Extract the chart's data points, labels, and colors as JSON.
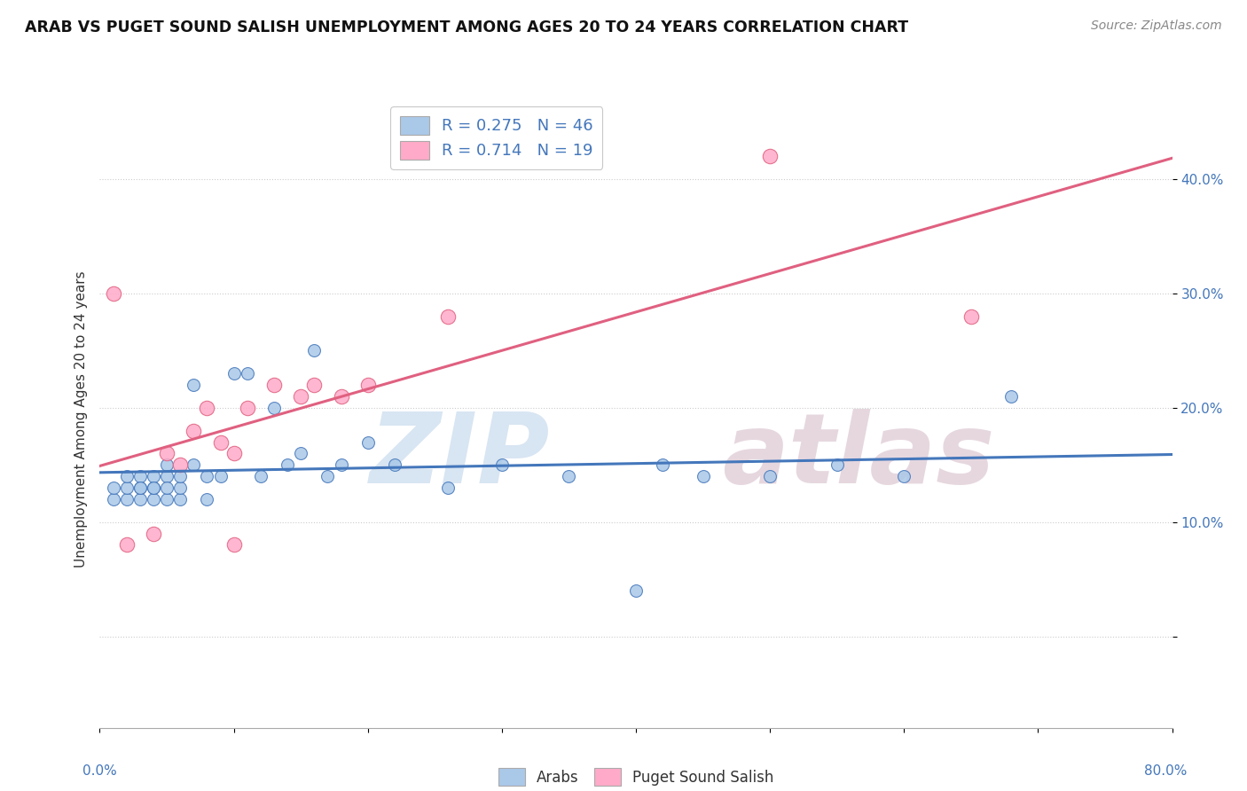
{
  "title": "ARAB VS PUGET SOUND SALISH UNEMPLOYMENT AMONG AGES 20 TO 24 YEARS CORRELATION CHART",
  "source": "Source: ZipAtlas.com",
  "ylabel": "Unemployment Among Ages 20 to 24 years",
  "watermark_zip": "ZIP",
  "watermark_atlas": "atlas",
  "arab_color": "#aac8e8",
  "salish_color": "#ffaac8",
  "arab_line_color": "#4477bb",
  "salish_line_color": "#e06080",
  "background_color": "#ffffff",
  "grid_color": "#cccccc",
  "xlim": [
    0.0,
    0.8
  ],
  "ylim": [
    -0.08,
    0.46
  ],
  "ytick_vals": [
    0.0,
    0.1,
    0.2,
    0.3,
    0.4
  ],
  "legend1_arab_label": "R = 0.275   N = 46",
  "legend1_salish_label": "R = 0.714   N = 19",
  "legend2_arab_label": "Arabs",
  "legend2_salish_label": "Puget Sound Salish",
  "arab_scatter_x": [
    0.01,
    0.01,
    0.02,
    0.02,
    0.02,
    0.03,
    0.03,
    0.03,
    0.03,
    0.04,
    0.04,
    0.04,
    0.04,
    0.05,
    0.05,
    0.05,
    0.05,
    0.06,
    0.06,
    0.06,
    0.07,
    0.07,
    0.08,
    0.08,
    0.09,
    0.1,
    0.11,
    0.12,
    0.13,
    0.14,
    0.15,
    0.16,
    0.17,
    0.18,
    0.2,
    0.22,
    0.26,
    0.3,
    0.35,
    0.4,
    0.42,
    0.45,
    0.5,
    0.55,
    0.6,
    0.68
  ],
  "arab_scatter_y": [
    0.12,
    0.13,
    0.12,
    0.13,
    0.14,
    0.12,
    0.13,
    0.14,
    0.13,
    0.12,
    0.13,
    0.14,
    0.13,
    0.12,
    0.14,
    0.15,
    0.13,
    0.12,
    0.13,
    0.14,
    0.22,
    0.15,
    0.12,
    0.14,
    0.14,
    0.23,
    0.23,
    0.14,
    0.2,
    0.15,
    0.16,
    0.25,
    0.14,
    0.15,
    0.17,
    0.15,
    0.13,
    0.15,
    0.14,
    0.04,
    0.15,
    0.14,
    0.14,
    0.15,
    0.14,
    0.21
  ],
  "salish_scatter_x": [
    0.01,
    0.02,
    0.04,
    0.05,
    0.06,
    0.07,
    0.08,
    0.09,
    0.1,
    0.11,
    0.13,
    0.15,
    0.16,
    0.18,
    0.2,
    0.26,
    0.5,
    0.65,
    0.1
  ],
  "salish_scatter_y": [
    0.3,
    0.08,
    0.09,
    0.16,
    0.15,
    0.18,
    0.2,
    0.17,
    0.16,
    0.2,
    0.22,
    0.21,
    0.22,
    0.21,
    0.22,
    0.28,
    0.42,
    0.28,
    0.08
  ]
}
